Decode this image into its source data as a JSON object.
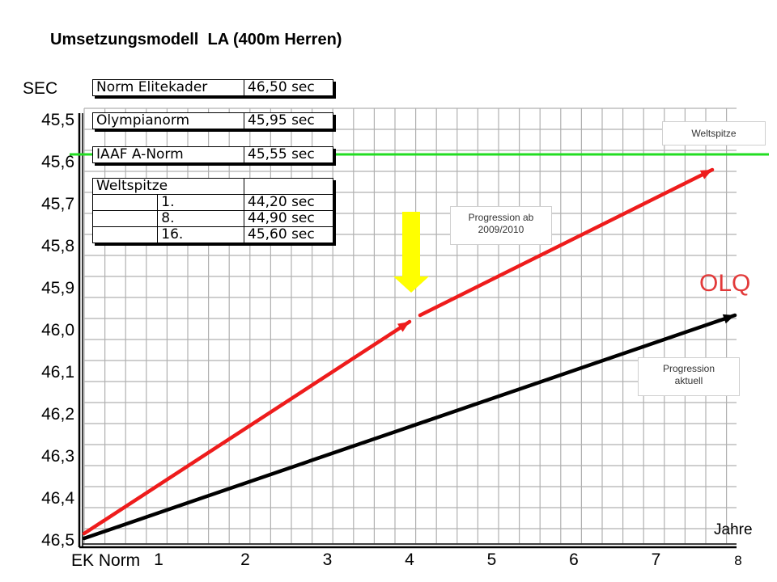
{
  "title": "Umsetzungsmodell  LA (400m Herren)",
  "tables": {
    "norm": [
      {
        "label": "Norm Elitekader",
        "value": "46,50 sec"
      },
      {
        "label": "Olympianorm",
        "value": "45,95 sec"
      },
      {
        "label": "IAAF A-Norm",
        "value": "45,55 sec"
      }
    ],
    "weltspitze": {
      "header": "Weltspitze",
      "rows": [
        {
          "rank": "1.",
          "value": "44,20 sec"
        },
        {
          "rank": "8.",
          "value": "44,90 sec"
        },
        {
          "rank": "16.",
          "value": "45,60 sec"
        }
      ]
    }
  },
  "annotations": {
    "weltspitze_box": "Weltspitze",
    "progression_ab_line1": "Progression ab",
    "progression_ab_line2": "2009/2010",
    "progression_aktuell_line1": "Progression",
    "progression_aktuell_line2": "aktuell",
    "olq": "OLQ"
  },
  "colors": {
    "grid_fill": "#ffffff",
    "grid_line": "#b0b0b0",
    "axis": "#000000",
    "green_line": "#22dd22",
    "red_series": "#ee1c1c",
    "black_series": "#000000",
    "yellow_arrow": "#ffff00",
    "olq_text": "#e23a3a"
  },
  "chart_data": {
    "type": "line",
    "title": "Umsetzungsmodell  LA (400m Herren)",
    "ylabel": "SEC",
    "xlabel": "Jahre",
    "x_origin_label": "EK Norm",
    "x_ticks": [
      "1",
      "2",
      "3",
      "4",
      "5",
      "6",
      "7",
      "8"
    ],
    "y_ticks": [
      "45,5",
      "45,6",
      "45,7",
      "45,8",
      "45,9",
      "46,0",
      "46,1",
      "46,2",
      "46,3",
      "46,4",
      "46,5"
    ],
    "y_tick_values": [
      45.5,
      45.6,
      45.7,
      45.8,
      45.9,
      46.0,
      46.1,
      46.2,
      46.3,
      46.4,
      46.5
    ],
    "ylim": [
      46.52,
      45.47
    ],
    "xlim": [
      0,
      8.1
    ],
    "y_inverted": true,
    "grid": true,
    "reference_lines": [
      {
        "y": 45.59,
        "color": "#22dd22"
      }
    ],
    "series": [
      {
        "color": "#ee1c1c",
        "x": [
          0.0,
          4.0
        ],
        "y": [
          46.47,
          45.99
        ]
      },
      {
        "color": "#ee1c1c",
        "x": [
          4.1,
          7.7
        ],
        "y": [
          45.96,
          45.62
        ]
      },
      {
        "color": "#000000",
        "x": [
          0.0,
          7.95
        ],
        "y": [
          46.49,
          45.95
        ]
      }
    ],
    "arrow": {
      "x": 4.05,
      "y_from": 45.72,
      "y_to": 45.92,
      "color": "#ffff00"
    }
  }
}
